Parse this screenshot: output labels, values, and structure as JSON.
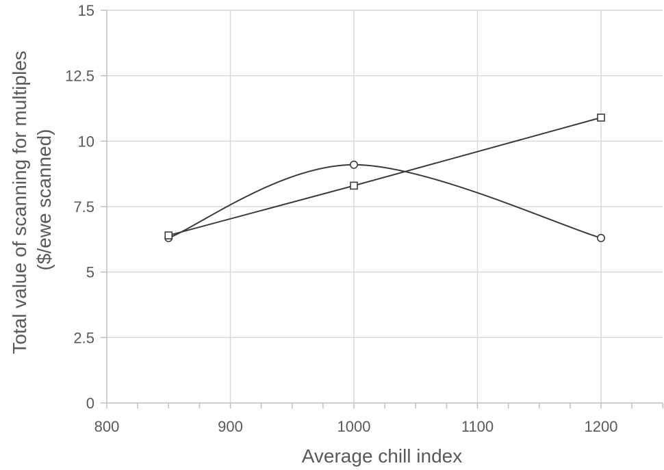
{
  "chart_data": {
    "type": "line",
    "title": "",
    "xlabel": "Average chill index",
    "ylabel_lines": [
      "Total value of scanning for multiples",
      "($/ewe scanned)"
    ],
    "xlim": [
      800,
      1250
    ],
    "ylim": [
      0,
      15
    ],
    "x_ticks": [
      800,
      900,
      1000,
      1100,
      1200
    ],
    "y_ticks": [
      0,
      2.5,
      5,
      7.5,
      10,
      12.5,
      15
    ],
    "y_tick_labels": [
      "0",
      "2.5",
      "5",
      "7.5",
      "10",
      "12.5",
      "15"
    ],
    "x_minor_tick_step": 25,
    "grid": true,
    "legend": "none",
    "series": [
      {
        "marker": "circle",
        "smooth": true,
        "x": [
          850,
          1000,
          1200
        ],
        "values": [
          6.3,
          9.1,
          6.3
        ]
      },
      {
        "marker": "square",
        "smooth": false,
        "x": [
          850,
          1000,
          1200
        ],
        "values": [
          6.4,
          8.3,
          10.9
        ]
      }
    ],
    "colors": {
      "series": "#3a3a3a",
      "grid": "#d9d9d9",
      "axis": "#bfbfbf",
      "text": "#595959"
    }
  }
}
